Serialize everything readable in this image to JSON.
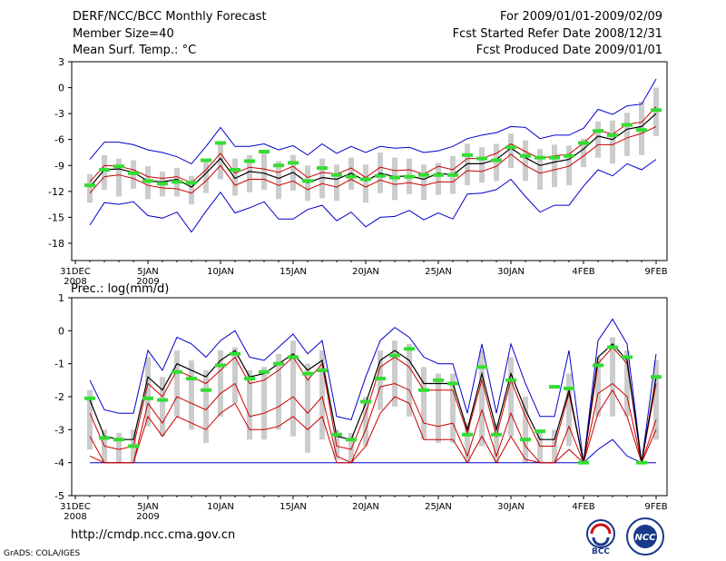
{
  "header": {
    "title": "DERF/NCC/BCC Monthly Forecast",
    "member": "Member Size=40",
    "variable": "Mean Surf. Temp.: °C",
    "period": "For 2009/01/01-2009/02/09",
    "started": "Fcst Started Refer Date 2008/12/31",
    "produced": "Fcst Produced Date 2009/01/01"
  },
  "footer": {
    "url": "http://cmdp.ncc.cma.gov.cn",
    "grads": "GrADS: COLA/IGES"
  },
  "logos": {
    "bcc": "BCC",
    "ncc": "NCC"
  },
  "colors": {
    "max_min": "#0000cc",
    "spread": "#cc0000",
    "mean": "#000000",
    "box": "#cccccc",
    "median": "#33dd33"
  },
  "chart_data": [
    {
      "type": "line",
      "title": "Mean Surf. Temp.: °C",
      "xlabel": "",
      "ylabel": "",
      "ylim": [
        -20,
        3
      ],
      "yticks": [
        3,
        0,
        -3,
        -6,
        -9,
        -12,
        -15,
        -18
      ],
      "xticks": [
        {
          "day": 0,
          "label": "31DEC",
          "sub": "2008"
        },
        {
          "day": 5,
          "label": "5JAN",
          "sub": "2009"
        },
        {
          "day": 10,
          "label": "10JAN",
          "sub": ""
        },
        {
          "day": 15,
          "label": "15JAN",
          "sub": ""
        },
        {
          "day": 20,
          "label": "20JAN",
          "sub": ""
        },
        {
          "day": 25,
          "label": "25JAN",
          "sub": ""
        },
        {
          "day": 30,
          "label": "30JAN",
          "sub": ""
        },
        {
          "day": 35,
          "label": "4FEB",
          "sub": ""
        },
        {
          "day": 40,
          "label": "9FEB",
          "sub": ""
        }
      ],
      "days": [
        1,
        2,
        3,
        4,
        5,
        6,
        7,
        8,
        9,
        10,
        11,
        12,
        13,
        14,
        15,
        16,
        17,
        18,
        19,
        20,
        21,
        22,
        23,
        24,
        25,
        26,
        27,
        28,
        29,
        30,
        31,
        32,
        33,
        34,
        35,
        36,
        37,
        38,
        39,
        40
      ],
      "series": [
        {
          "name": "max",
          "values": [
            -8.3,
            -6.3,
            -6.3,
            -6.6,
            -7.2,
            -7.5,
            -8.0,
            -8.8,
            -6.8,
            -4.6,
            -6.8,
            -6.8,
            -6.5,
            -7.2,
            -6.7,
            -7.8,
            -6.5,
            -7.6,
            -6.8,
            -7.5,
            -6.8,
            -7.0,
            -6.9,
            -7.5,
            -7.3,
            -6.8,
            -5.9,
            -5.5,
            -5.2,
            -4.5,
            -4.6,
            -5.9,
            -5.5,
            -5.5,
            -4.7,
            -2.5,
            -3.1,
            -2.1,
            -1.9,
            1.0
          ]
        },
        {
          "name": "upper",
          "values": [
            -10.9,
            -9.0,
            -9.1,
            -9.5,
            -10.3,
            -10.5,
            -10.3,
            -11.0,
            -9.5,
            -7.6,
            -9.9,
            -9.2,
            -9.4,
            -9.8,
            -9.1,
            -10.4,
            -9.8,
            -10.0,
            -9.3,
            -10.4,
            -9.2,
            -9.6,
            -9.5,
            -10.0,
            -9.1,
            -9.5,
            -8.2,
            -8.2,
            -7.6,
            -6.5,
            -7.4,
            -8.2,
            -7.9,
            -7.7,
            -6.4,
            -4.9,
            -5.4,
            -4.2,
            -4.0,
            -2.2
          ]
        },
        {
          "name": "mean",
          "values": [
            -11.5,
            -9.5,
            -9.4,
            -9.8,
            -10.8,
            -10.9,
            -10.6,
            -11.5,
            -9.9,
            -8.2,
            -10.5,
            -9.7,
            -9.9,
            -10.5,
            -9.8,
            -11.0,
            -10.4,
            -10.6,
            -9.9,
            -10.8,
            -9.9,
            -10.3,
            -10.2,
            -10.6,
            -9.9,
            -10.1,
            -8.8,
            -8.8,
            -8.3,
            -7.0,
            -8.1,
            -9.0,
            -8.6,
            -8.3,
            -7.1,
            -5.6,
            -6.0,
            -4.8,
            -4.5,
            -3.0
          ]
        },
        {
          "name": "lower",
          "values": [
            -12.2,
            -10.3,
            -10.1,
            -10.5,
            -11.3,
            -11.6,
            -11.7,
            -12.2,
            -10.8,
            -9.0,
            -11.3,
            -10.6,
            -10.6,
            -11.3,
            -10.8,
            -11.8,
            -11.1,
            -11.5,
            -10.6,
            -11.5,
            -10.7,
            -11.2,
            -11.0,
            -11.3,
            -10.9,
            -10.9,
            -9.6,
            -9.7,
            -9.1,
            -7.7,
            -9.0,
            -9.9,
            -9.5,
            -9.1,
            -7.9,
            -6.6,
            -6.6,
            -5.8,
            -5.3,
            -4.5
          ]
        },
        {
          "name": "min",
          "values": [
            -15.9,
            -13.3,
            -13.5,
            -13.2,
            -14.8,
            -15.1,
            -14.4,
            -16.7,
            -14.3,
            -12.1,
            -14.5,
            -13.9,
            -13.2,
            -15.2,
            -15.2,
            -14.1,
            -13.6,
            -15.4,
            -14.4,
            -16.1,
            -15.0,
            -14.9,
            -14.2,
            -15.3,
            -14.5,
            -15.2,
            -12.3,
            -12.2,
            -11.8,
            -10.6,
            -12.6,
            -14.4,
            -13.6,
            -13.6,
            -11.4,
            -9.5,
            -10.2,
            -8.8,
            -9.5,
            -8.3
          ]
        },
        {
          "name": "box_top",
          "values": [
            -10.0,
            -7.8,
            -8.2,
            -8.4,
            -9.1,
            -9.7,
            -9.3,
            -10.2,
            -8.6,
            -6.3,
            -8.2,
            -7.8,
            -7.3,
            -8.5,
            -7.8,
            -9.0,
            -8.2,
            -8.9,
            -8.1,
            -8.9,
            -7.5,
            -8.1,
            -8.2,
            -8.9,
            -8.7,
            -7.9,
            -6.5,
            -6.9,
            -6.5,
            -5.3,
            -6.1,
            -7.1,
            -6.6,
            -6.7,
            -5.9,
            -3.9,
            -3.8,
            -2.9,
            -1.6,
            0.0
          ]
        },
        {
          "name": "box_bottom",
          "values": [
            -13.3,
            -11.8,
            -12.6,
            -11.7,
            -12.9,
            -12.6,
            -12.6,
            -13.5,
            -12.2,
            -10.6,
            -12.5,
            -12.1,
            -11.8,
            -12.9,
            -11.9,
            -13.1,
            -12.8,
            -13.1,
            -11.8,
            -13.3,
            -12.2,
            -13.0,
            -12.3,
            -13.0,
            -12.4,
            -12.3,
            -11.3,
            -11.0,
            -10.8,
            -9.3,
            -10.8,
            -11.8,
            -11.5,
            -11.3,
            -9.2,
            -8.1,
            -8.8,
            -7.9,
            -7.8,
            -5.6
          ]
        },
        {
          "name": "median",
          "values": [
            -11.3,
            -9.5,
            -9.1,
            -9.9,
            -10.8,
            -11.1,
            -10.9,
            -11.0,
            -8.4,
            -6.4,
            -9.5,
            -8.5,
            -7.4,
            -9.0,
            -8.7,
            -10.8,
            -9.3,
            -10.1,
            -10.3,
            -10.6,
            -10.2,
            -10.4,
            -10.3,
            -10.1,
            -10.1,
            -10.1,
            -7.8,
            -8.2,
            -8.4,
            -6.9,
            -7.9,
            -8.1,
            -8.1,
            -7.9,
            -6.4,
            -5.0,
            -5.5,
            -4.3,
            -4.9,
            -2.6
          ]
        }
      ]
    },
    {
      "type": "line",
      "title": "Prec.: log(mm/d)",
      "xlabel": "",
      "ylabel": "",
      "ylim": [
        -5,
        1
      ],
      "yticks": [
        1,
        0,
        -1,
        -2,
        -3,
        -4,
        -5
      ],
      "xticks": [
        {
          "day": 0,
          "label": "31DEC",
          "sub": "2008"
        },
        {
          "day": 5,
          "label": "5JAN",
          "sub": "2009"
        },
        {
          "day": 10,
          "label": "10JAN",
          "sub": ""
        },
        {
          "day": 15,
          "label": "15JAN",
          "sub": ""
        },
        {
          "day": 20,
          "label": "20JAN",
          "sub": ""
        },
        {
          "day": 25,
          "label": "25JAN",
          "sub": ""
        },
        {
          "day": 30,
          "label": "30JAN",
          "sub": ""
        },
        {
          "day": 35,
          "label": "4FEB",
          "sub": ""
        },
        {
          "day": 40,
          "label": "9FEB",
          "sub": ""
        }
      ],
      "days": [
        1,
        2,
        3,
        4,
        5,
        6,
        7,
        8,
        9,
        10,
        11,
        12,
        13,
        14,
        15,
        16,
        17,
        18,
        19,
        20,
        21,
        22,
        23,
        24,
        25,
        26,
        27,
        28,
        29,
        30,
        31,
        32,
        33,
        34,
        35,
        36,
        37,
        38,
        39,
        40
      ],
      "series": [
        {
          "name": "max",
          "values": [
            -1.5,
            -2.4,
            -2.5,
            -2.5,
            -0.6,
            -1.2,
            -0.2,
            -0.4,
            -0.8,
            -0.3,
            0.0,
            -0.8,
            -0.9,
            -0.5,
            -0.1,
            -0.7,
            -0.3,
            -2.6,
            -2.7,
            -1.4,
            -0.3,
            0.1,
            -0.2,
            -0.8,
            -1.0,
            -1.0,
            -2.5,
            -0.4,
            -2.5,
            -0.4,
            -1.6,
            -2.6,
            -2.6,
            -0.6,
            -4.0,
            -0.3,
            0.35,
            -0.4,
            -4.0,
            -0.7
          ]
        },
        {
          "name": "upper",
          "values": [
            -2.5,
            -3.5,
            -3.6,
            -3.5,
            -1.6,
            -2.0,
            -1.2,
            -1.4,
            -1.6,
            -1.2,
            -0.8,
            -1.6,
            -1.5,
            -1.2,
            -0.8,
            -1.5,
            -1.0,
            -3.5,
            -3.6,
            -2.5,
            -1.1,
            -0.8,
            -1.1,
            -1.8,
            -1.8,
            -1.8,
            -3.1,
            -1.5,
            -3.2,
            -1.5,
            -2.6,
            -3.5,
            -3.5,
            -1.9,
            -4.0,
            -1.0,
            -0.5,
            -1.0,
            -4.0,
            -1.6
          ]
        },
        {
          "name": "mean",
          "values": [
            -2.1,
            -3.2,
            -3.3,
            -3.3,
            -1.4,
            -1.8,
            -1.0,
            -1.2,
            -1.4,
            -0.9,
            -0.6,
            -1.4,
            -1.3,
            -1.0,
            -0.7,
            -1.2,
            -0.9,
            -3.2,
            -3.3,
            -2.2,
            -0.9,
            -0.6,
            -0.9,
            -1.6,
            -1.6,
            -1.6,
            -3.0,
            -1.3,
            -3.0,
            -1.3,
            -2.4,
            -3.3,
            -3.3,
            -1.8,
            -4.0,
            -0.8,
            -0.4,
            -0.9,
            -4.0,
            -1.4
          ]
        },
        {
          "name": "lower",
          "values": [
            -3.2,
            -4.0,
            -4.0,
            -4.0,
            -2.2,
            -2.8,
            -2.0,
            -2.2,
            -2.4,
            -1.9,
            -1.6,
            -2.6,
            -2.5,
            -2.3,
            -2.0,
            -2.5,
            -2.0,
            -3.8,
            -4.0,
            -3.0,
            -1.7,
            -1.6,
            -1.8,
            -2.8,
            -2.9,
            -2.8,
            -3.8,
            -2.4,
            -3.8,
            -2.5,
            -3.5,
            -4.0,
            -4.0,
            -2.9,
            -4.0,
            -1.9,
            -1.6,
            -2.0,
            -4.0,
            -2.7
          ]
        },
        {
          "name": "lower2",
          "values": [
            -3.8,
            -4.0,
            -4.0,
            -4.0,
            -2.6,
            -3.2,
            -2.6,
            -2.8,
            -3.0,
            -2.5,
            -2.2,
            -3.0,
            -3.0,
            -2.9,
            -2.6,
            -3.0,
            -2.6,
            -4.0,
            -4.0,
            -3.5,
            -2.5,
            -2.0,
            -2.2,
            -3.3,
            -3.3,
            -3.3,
            -4.0,
            -3.2,
            -4.0,
            -3.2,
            -3.9,
            -4.0,
            -4.0,
            -3.6,
            -4.0,
            -2.5,
            -1.8,
            -2.6,
            -4.0,
            -3.0
          ]
        },
        {
          "name": "min",
          "values": [
            -4.0,
            -4.0,
            -4.0,
            -4.0,
            -4.0,
            -4.0,
            -4.0,
            -4.0,
            -4.0,
            -4.0,
            -4.0,
            -4.0,
            -4.0,
            -4.0,
            -4.0,
            -4.0,
            -4.0,
            -4.0,
            -4.0,
            -4.0,
            -4.0,
            -4.0,
            -4.0,
            -4.0,
            -4.0,
            -4.0,
            -4.0,
            -4.0,
            -4.0,
            -4.0,
            -4.0,
            -4.0,
            -4.0,
            -4.0,
            -4.0,
            -3.6,
            -3.3,
            -3.8,
            -4.0,
            -4.0
          ]
        },
        {
          "name": "box_top",
          "values": [
            -1.8,
            -3.0,
            -3.1,
            -3.0,
            -0.8,
            -1.4,
            -0.6,
            -0.9,
            -1.2,
            -0.6,
            -0.5,
            -1.2,
            -1.1,
            -0.7,
            -0.3,
            -1.0,
            -0.6,
            -3.0,
            -3.1,
            -2.0,
            -0.6,
            -0.3,
            -0.4,
            -1.1,
            -1.3,
            -1.3,
            -2.8,
            -0.6,
            -2.8,
            -0.8,
            -2.0,
            -3.0,
            -3.0,
            -1.3,
            -4.0,
            -0.8,
            -0.2,
            -0.6,
            -4.0,
            -0.9
          ]
        },
        {
          "name": "box_bottom",
          "values": [
            -3.6,
            -4.0,
            -4.0,
            -4.0,
            -2.9,
            -3.2,
            -2.6,
            -3.0,
            -3.4,
            -2.6,
            -2.2,
            -3.3,
            -3.3,
            -3.0,
            -3.2,
            -3.7,
            -3.3,
            -3.9,
            -4.0,
            -3.5,
            -2.4,
            -2.3,
            -2.6,
            -3.3,
            -3.4,
            -3.4,
            -4.0,
            -3.5,
            -4.0,
            -3.2,
            -4.0,
            -4.0,
            -4.0,
            -3.5,
            -4.0,
            -2.6,
            -2.6,
            -2.6,
            -4.0,
            -3.3
          ]
        },
        {
          "name": "median",
          "values": [
            -2.05,
            -3.25,
            -3.3,
            -3.5,
            -2.05,
            -2.1,
            -1.25,
            -1.45,
            -1.8,
            -1.05,
            -0.7,
            -1.45,
            -1.25,
            -1.0,
            -0.8,
            -1.3,
            -1.2,
            -3.15,
            -3.3,
            -2.15,
            -1.45,
            -0.75,
            -0.55,
            -1.8,
            -1.5,
            -1.6,
            -3.15,
            -1.1,
            -3.15,
            -1.5,
            -3.3,
            -3.05,
            -1.7,
            -1.75,
            -4.0,
            -1.05,
            -0.5,
            -0.8,
            -4.0,
            -1.4
          ]
        }
      ]
    }
  ]
}
